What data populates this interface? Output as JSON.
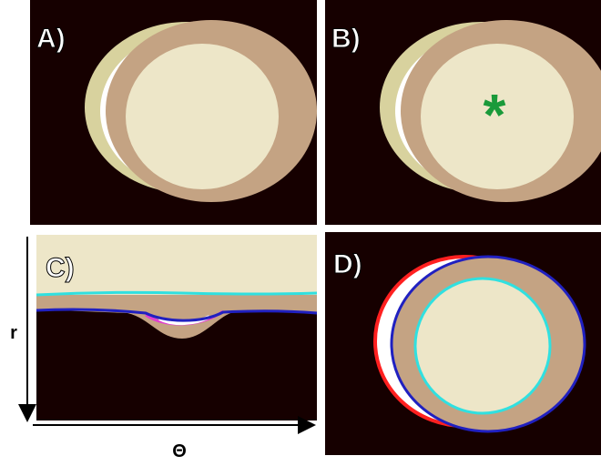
{
  "panels": [
    {
      "label": "A)"
    },
    {
      "label": "B)",
      "marker": "*"
    },
    {
      "label": "C)"
    },
    {
      "label": "D)"
    }
  ],
  "axes": {
    "vertical": "r",
    "horizontal": "Θ"
  }
}
